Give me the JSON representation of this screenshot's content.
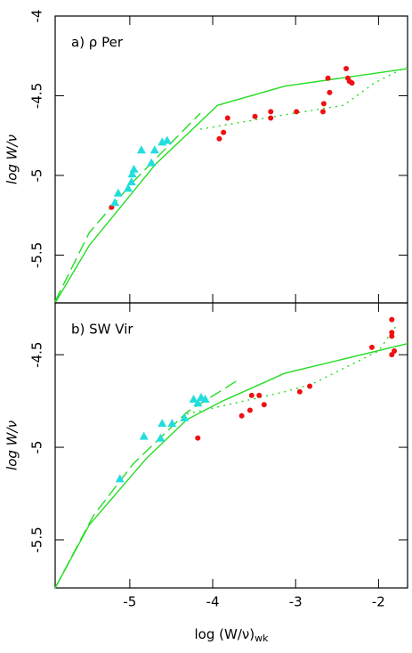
{
  "chart_data": [
    {
      "type": "scatter",
      "panel_label": "a) ρ Per",
      "y_label": "log W/ν",
      "xlim": [
        -5.9,
        -1.65
      ],
      "ylim": [
        -5.8,
        -4
      ],
      "xticks": [
        -5,
        -4,
        -3,
        -2
      ],
      "yticks": [
        -4,
        -4.5,
        -5,
        -5.5
      ],
      "series": [
        {
          "style": "solid",
          "color": "#22dd22",
          "x": [
            -5.9,
            -5.49,
            -4.69,
            -3.94,
            -3.13,
            -1.65
          ],
          "values": [
            -5.8,
            -5.44,
            -4.93,
            -4.56,
            -4.44,
            -4.33
          ]
        },
        {
          "style": "dashed",
          "color": "#22dd22",
          "x": [
            -5.9,
            -5.49,
            -4.96,
            -4.15
          ],
          "values": [
            -5.79,
            -5.36,
            -5.04,
            -4.61
          ]
        },
        {
          "style": "dotted",
          "color": "#22dd22",
          "x": [
            -4.15,
            -3.02,
            -2.42,
            -2.05,
            -1.67
          ],
          "values": [
            -4.71,
            -4.61,
            -4.56,
            -4.42,
            -4.32
          ]
        },
        {
          "style": "circle",
          "color": "#ee1111",
          "x": [
            -5.22,
            -3.92,
            -3.87,
            -3.82,
            -3.49,
            -3.3,
            -3.3,
            -2.99,
            -2.67,
            -2.66,
            -2.59,
            -2.61,
            -2.39,
            -2.37,
            -2.35,
            -2.32
          ],
          "values": [
            -5.2,
            -4.77,
            -4.73,
            -4.64,
            -4.63,
            -4.6,
            -4.64,
            -4.6,
            -4.6,
            -4.55,
            -4.48,
            -4.39,
            -4.33,
            -4.39,
            -4.41,
            -4.42
          ]
        },
        {
          "style": "triangle",
          "color": "#22dddd",
          "x": [
            -5.18,
            -5.14,
            -5.02,
            -4.98,
            -4.97,
            -4.95,
            -4.86,
            -4.74,
            -4.7,
            -4.61,
            -4.55
          ],
          "values": [
            -5.17,
            -5.11,
            -5.08,
            -5.04,
            -4.99,
            -4.96,
            -4.84,
            -4.92,
            -4.84,
            -4.79,
            -4.78
          ]
        }
      ]
    },
    {
      "type": "scatter",
      "panel_label": "b) SW Vir",
      "y_label": "log W/ν",
      "x_label": "log (W/ν)",
      "x_label_subscript": "wk",
      "xlim": [
        -5.9,
        -1.65
      ],
      "ylim": [
        -5.76,
        -4.22
      ],
      "xticks": [
        -5,
        -4,
        -3,
        -2
      ],
      "yticks": [
        -4.5,
        -5,
        -5.5
      ],
      "series": [
        {
          "style": "solid",
          "color": "#22dd22",
          "x": [
            -5.9,
            -5.49,
            -4.8,
            -4.31,
            -3.88,
            -3.13,
            -1.65
          ],
          "values": [
            -5.76,
            -5.42,
            -5.06,
            -4.85,
            -4.75,
            -4.6,
            -4.44
          ]
        },
        {
          "style": "dashed",
          "color": "#22dd22",
          "x": [
            -5.9,
            -5.44,
            -4.96,
            -4.31,
            -3.67
          ],
          "values": [
            -5.76,
            -5.37,
            -5.09,
            -4.81,
            -4.63
          ]
        },
        {
          "style": "dotted",
          "color": "#22dd22",
          "x": [
            -4.31,
            -3.13,
            -2.81,
            -2.0,
            -1.78
          ],
          "values": [
            -4.82,
            -4.7,
            -4.66,
            -4.48,
            -4.34
          ]
        },
        {
          "style": "circle",
          "color": "#ee1111",
          "x": [
            -4.18,
            -3.65,
            -3.55,
            -3.53,
            -3.44,
            -3.38,
            -2.95,
            -2.83,
            -2.08,
            -1.84,
            -1.84,
            -1.84,
            -1.81,
            -1.84
          ],
          "values": [
            -4.95,
            -4.83,
            -4.8,
            -4.72,
            -4.72,
            -4.77,
            -4.7,
            -4.67,
            -4.46,
            -4.31,
            -4.38,
            -4.4,
            -4.48,
            -4.5
          ]
        },
        {
          "style": "triangle",
          "color": "#22dddd",
          "x": [
            -5.12,
            -4.83,
            -4.63,
            -4.61,
            -4.49,
            -4.34,
            -4.23,
            -4.18,
            -4.14,
            -4.09
          ],
          "values": [
            -5.17,
            -4.94,
            -4.95,
            -4.87,
            -4.87,
            -4.84,
            -4.74,
            -4.76,
            -4.73,
            -4.74
          ]
        }
      ]
    }
  ]
}
